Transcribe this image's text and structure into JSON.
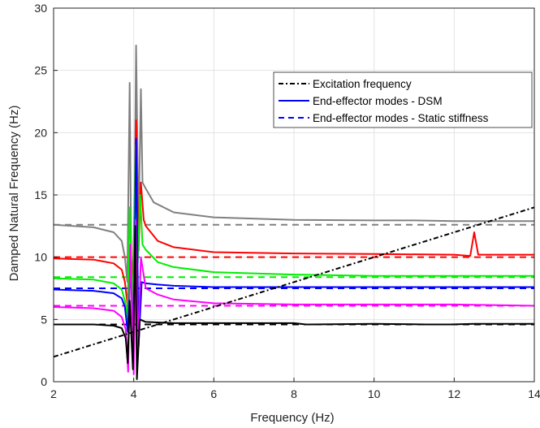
{
  "chart_data": {
    "type": "line",
    "title": "",
    "xlabel": "Frequency (Hz)",
    "ylabel": "Damped Natural Frequency (Hz)",
    "xlim": [
      2,
      14
    ],
    "ylim": [
      0,
      30
    ],
    "x_ticks": [
      2,
      4,
      6,
      8,
      10,
      12,
      14
    ],
    "y_ticks": [
      0,
      5,
      10,
      15,
      20,
      25,
      30
    ],
    "grid": true,
    "legend_position": "top-right",
    "legend": [
      {
        "label": "Excitation frequency",
        "color": "#000000",
        "style": "dash-dot"
      },
      {
        "label": "End-effector modes - DSM",
        "color": "#0000ff",
        "style": "solid"
      },
      {
        "label": "End-effector modes - Static stiffness",
        "color": "#0000ff",
        "style": "dashed"
      }
    ],
    "excitation_line": {
      "x": [
        2,
        14
      ],
      "y": [
        2,
        14
      ],
      "color": "#000000"
    },
    "static_modes": [
      {
        "y": 12.6,
        "color": "#808080"
      },
      {
        "y": 10.0,
        "color": "#ff0000"
      },
      {
        "y": 8.4,
        "color": "#00ee00"
      },
      {
        "y": 7.5,
        "color": "#0000ff"
      },
      {
        "y": 6.1,
        "color": "#ff00ff"
      },
      {
        "y": 4.6,
        "color": "#000000"
      }
    ],
    "dsm_modes": [
      {
        "color": "#808080",
        "x": [
          2,
          3,
          3.5,
          3.7,
          3.78,
          3.84,
          3.9,
          3.95,
          4.02,
          4.06,
          4.12,
          4.18,
          4.22,
          4.3,
          4.5,
          5,
          6,
          8,
          10,
          11,
          12,
          13,
          14
        ],
        "y": [
          12.6,
          12.4,
          12.0,
          11.3,
          10.0,
          8.0,
          24.0,
          5.0,
          14.0,
          27.0,
          12.0,
          23.5,
          16.0,
          15.5,
          14.4,
          13.6,
          13.2,
          13.0,
          12.95,
          12.95,
          12.9,
          12.9,
          12.9
        ]
      },
      {
        "color": "#ff0000",
        "x": [
          2,
          3,
          3.5,
          3.7,
          3.78,
          3.85,
          3.92,
          3.98,
          4.06,
          4.12,
          4.18,
          4.25,
          4.3,
          4.6,
          5,
          6,
          8,
          10,
          12,
          12.4,
          12.5,
          12.6,
          14
        ],
        "y": [
          9.9,
          9.8,
          9.5,
          9.0,
          8.0,
          6.0,
          11.0,
          7.0,
          21.0,
          10.5,
          16.0,
          13.0,
          12.5,
          11.3,
          10.8,
          10.4,
          10.3,
          10.25,
          10.2,
          10.1,
          12.0,
          10.2,
          10.2
        ]
      },
      {
        "color": "#00ee00",
        "x": [
          2,
          3,
          3.5,
          3.7,
          3.78,
          3.84,
          3.9,
          3.98,
          4.05,
          4.1,
          4.16,
          4.22,
          4.3,
          4.6,
          5,
          6,
          8,
          10,
          12,
          14
        ],
        "y": [
          8.3,
          8.2,
          7.9,
          7.4,
          6.5,
          5.0,
          14.0,
          5.5,
          19.0,
          9.5,
          15.0,
          11.0,
          10.6,
          9.6,
          9.2,
          8.8,
          8.6,
          8.5,
          8.5,
          8.5
        ]
      },
      {
        "color": "#0000ff",
        "x": [
          2,
          3,
          3.5,
          3.7,
          3.78,
          3.85,
          3.92,
          4.0,
          4.06,
          4.12,
          4.2,
          4.3,
          4.6,
          5,
          6,
          7.5,
          8,
          10,
          12,
          14
        ],
        "y": [
          7.4,
          7.3,
          7.1,
          6.7,
          6.0,
          4.0,
          9.0,
          4.0,
          19.5,
          2.8,
          8.0,
          7.9,
          7.8,
          7.7,
          7.6,
          7.6,
          7.6,
          7.6,
          7.6,
          7.6
        ]
      },
      {
        "color": "#ff00ff",
        "x": [
          2,
          3,
          3.5,
          3.7,
          3.8,
          3.86,
          3.92,
          4.0,
          4.05,
          4.1,
          4.18,
          4.3,
          4.6,
          5,
          6,
          8,
          10,
          12,
          14
        ],
        "y": [
          6.0,
          5.9,
          5.7,
          5.2,
          4.2,
          0.8,
          11.0,
          0.6,
          13.0,
          2.0,
          10.0,
          7.5,
          7.0,
          6.6,
          6.3,
          6.2,
          6.2,
          6.2,
          6.1
        ]
      },
      {
        "color": "#000000",
        "x": [
          2,
          3,
          3.5,
          3.7,
          3.8,
          3.85,
          3.9,
          3.98,
          4.04,
          4.08,
          4.15,
          4.3,
          5,
          6,
          7.5,
          8,
          8.3,
          10,
          11.3,
          11.9,
          12.5,
          14
        ],
        "y": [
          4.6,
          4.6,
          4.5,
          4.3,
          3.5,
          1.5,
          6.5,
          1.0,
          12.5,
          0.2,
          5.0,
          4.8,
          4.7,
          4.7,
          4.7,
          4.7,
          4.6,
          4.65,
          4.6,
          4.6,
          4.65,
          4.65
        ]
      }
    ]
  }
}
